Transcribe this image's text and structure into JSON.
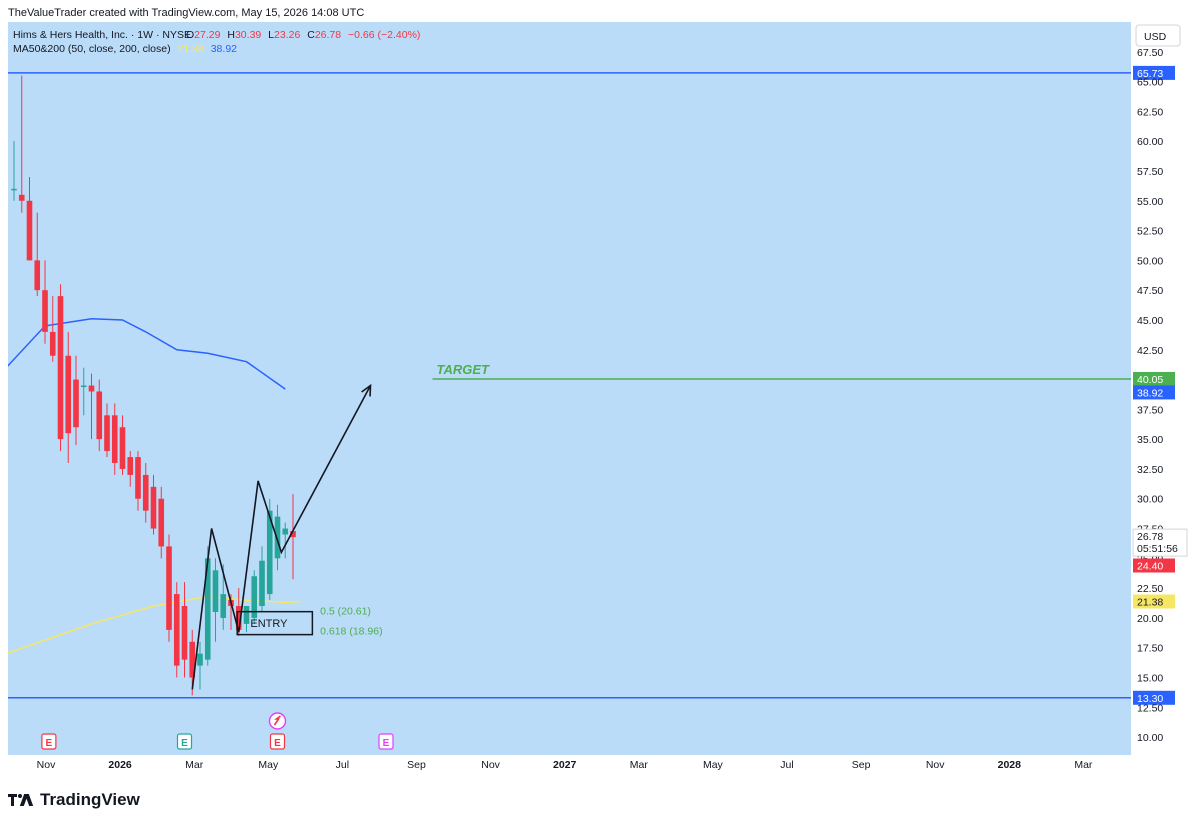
{
  "attribution": "TheValueTrader created with TradingView.com, May 15, 2026 14:08 UTC",
  "brand": "TradingView",
  "currency_button": "USD",
  "legend": {
    "symbol": "Hims & Hers Health, Inc. · 1W · NYSE",
    "o_label": "O",
    "o": "27.29",
    "h_label": "H",
    "h": "30.39",
    "l_label": "L",
    "l": "23.26",
    "c_label": "C",
    "c": "26.78",
    "change": "−0.66 (−2.40%)",
    "ma_label": "MA50&200 (50, close, 200, close)",
    "ma50": "21.38",
    "ma200": "38.92"
  },
  "colors": {
    "background": "#bbdcf8",
    "up": "#26a69a",
    "down": "#f23645",
    "ma50": "#f5e663",
    "ma200": "#2962ff",
    "hline": "#2962ff",
    "target": "#4caf50"
  },
  "chart_data": {
    "type": "candlestick",
    "y_axis": {
      "ylim": [
        8.5,
        70
      ],
      "ticks": [
        "10.00",
        "12.50",
        "15.00",
        "17.50",
        "20.00",
        "22.50",
        "25.00",
        "27.50",
        "30.00",
        "32.50",
        "35.00",
        "37.50",
        "40.00",
        "42.50",
        "45.00",
        "47.50",
        "50.00",
        "52.50",
        "55.00",
        "57.50",
        "60.00",
        "62.50",
        "65.00",
        "67.50"
      ]
    },
    "x_axis": {
      "ticks": [
        {
          "label": "Nov",
          "bold": false
        },
        {
          "label": "2026",
          "bold": true
        },
        {
          "label": "Mar",
          "bold": false
        },
        {
          "label": "May",
          "bold": false
        },
        {
          "label": "Jul",
          "bold": false
        },
        {
          "label": "Sep",
          "bold": false
        },
        {
          "label": "Nov",
          "bold": false
        },
        {
          "label": "2027",
          "bold": true
        },
        {
          "label": "Mar",
          "bold": false
        },
        {
          "label": "May",
          "bold": false
        },
        {
          "label": "Jul",
          "bold": false
        },
        {
          "label": "Sep",
          "bold": false
        },
        {
          "label": "Nov",
          "bold": false
        },
        {
          "label": "2028",
          "bold": true
        },
        {
          "label": "Mar",
          "bold": false
        }
      ]
    },
    "candles": [
      {
        "o": 56,
        "h": 60,
        "l": 55,
        "c": 56
      },
      {
        "o": 55.5,
        "h": 65.5,
        "l": 54,
        "c": 55
      },
      {
        "o": 55,
        "h": 57,
        "l": 50,
        "c": 50
      },
      {
        "o": 50,
        "h": 54,
        "l": 47,
        "c": 47.5
      },
      {
        "o": 47.5,
        "h": 50,
        "l": 43,
        "c": 44
      },
      {
        "o": 44,
        "h": 47,
        "l": 41.5,
        "c": 42
      },
      {
        "o": 47,
        "h": 48,
        "l": 34,
        "c": 35
      },
      {
        "o": 42,
        "h": 44,
        "l": 33,
        "c": 35.5
      },
      {
        "o": 40,
        "h": 42,
        "l": 34.5,
        "c": 36
      },
      {
        "o": 39.5,
        "h": 41,
        "l": 37,
        "c": 39.5
      },
      {
        "o": 39.5,
        "h": 40.5,
        "l": 35,
        "c": 39
      },
      {
        "o": 39,
        "h": 40,
        "l": 34,
        "c": 35
      },
      {
        "o": 37,
        "h": 38,
        "l": 33.5,
        "c": 34
      },
      {
        "o": 37,
        "h": 38,
        "l": 32,
        "c": 33
      },
      {
        "o": 36,
        "h": 37,
        "l": 32,
        "c": 32.5
      },
      {
        "o": 33.5,
        "h": 34,
        "l": 31,
        "c": 32
      },
      {
        "o": 33.5,
        "h": 34,
        "l": 29,
        "c": 30
      },
      {
        "o": 32,
        "h": 33,
        "l": 28,
        "c": 29
      },
      {
        "o": 31,
        "h": 32,
        "l": 27,
        "c": 27.5
      },
      {
        "o": 30,
        "h": 31,
        "l": 25,
        "c": 26
      },
      {
        "o": 26,
        "h": 27,
        "l": 18,
        "c": 19
      },
      {
        "o": 22,
        "h": 23,
        "l": 15,
        "c": 16
      },
      {
        "o": 21,
        "h": 23,
        "l": 15,
        "c": 16.5
      },
      {
        "o": 18,
        "h": 19,
        "l": 13.5,
        "c": 15
      },
      {
        "o": 16,
        "h": 18,
        "l": 14,
        "c": 17
      },
      {
        "o": 16.5,
        "h": 26,
        "l": 16,
        "c": 25
      },
      {
        "o": 20.5,
        "h": 25,
        "l": 18,
        "c": 24
      },
      {
        "o": 20,
        "h": 24.5,
        "l": 19,
        "c": 22
      },
      {
        "o": 21.5,
        "h": 22,
        "l": 19,
        "c": 21
      },
      {
        "o": 21,
        "h": 22.5,
        "l": 18.5,
        "c": 19
      },
      {
        "o": 19.5,
        "h": 21,
        "l": 18.8,
        "c": 21
      },
      {
        "o": 20,
        "h": 24,
        "l": 19.5,
        "c": 23.5
      },
      {
        "o": 21,
        "h": 26,
        "l": 20.5,
        "c": 24.8
      },
      {
        "o": 22,
        "h": 30,
        "l": 21.5,
        "c": 29
      },
      {
        "o": 25,
        "h": 29.5,
        "l": 24,
        "c": 28.5
      },
      {
        "o": 27,
        "h": 28,
        "l": 25,
        "c": 27.5
      },
      {
        "o": 27.29,
        "h": 30.39,
        "l": 23.26,
        "c": 26.78
      }
    ],
    "ma50_points": [
      [
        -1,
        17
      ],
      [
        10,
        19.5
      ],
      [
        18,
        21
      ],
      [
        25,
        21.8
      ],
      [
        30,
        21.5
      ],
      [
        35,
        21.3
      ],
      [
        37,
        21.38
      ]
    ],
    "ma200_points": [
      [
        -1,
        41
      ],
      [
        4,
        44.5
      ],
      [
        10,
        45.1
      ],
      [
        14,
        45
      ],
      [
        17,
        44
      ],
      [
        21,
        42.5
      ],
      [
        25,
        42.2
      ],
      [
        30,
        41.5
      ],
      [
        35,
        39.2
      ]
    ],
    "horizontal_lines": [
      {
        "value": 65.73,
        "label": "65.73",
        "color": "#2962ff"
      },
      {
        "value": 13.3,
        "label": "13.30",
        "color": "#2962ff"
      }
    ],
    "target": {
      "value": 40.05,
      "label": "TARGET",
      "start_index": 54
    },
    "price_labels": [
      {
        "value": 40.05,
        "label": "40.05",
        "bg": "#4caf50",
        "fg": "#ffffff"
      },
      {
        "value": 38.92,
        "label": "38.92",
        "bg": "#2962ff",
        "fg": "#ffffff"
      },
      {
        "value": 24.4,
        "label": "24.40",
        "bg": "#f23645",
        "fg": "#ffffff"
      },
      {
        "value": 21.38,
        "label": "21.38",
        "bg": "#f5e663",
        "fg": "#131722"
      }
    ],
    "last_price": {
      "value": 26.78,
      "label": "26.78",
      "countdown": "05:51:56"
    },
    "zigzag": [
      [
        23,
        14
      ],
      [
        25.5,
        27.5
      ],
      [
        29,
        18.8
      ],
      [
        31.5,
        31.5
      ],
      [
        34.5,
        25.5
      ],
      [
        46,
        39.5
      ]
    ],
    "fib": [
      {
        "label": "0.5 (20.61)",
        "value": 20.61
      },
      {
        "label": "0.618 (18.96)",
        "value": 18.96
      }
    ],
    "entry_label": "ENTRY",
    "events": [
      {
        "index": 4.5,
        "letter": "E",
        "color": "#f23645"
      },
      {
        "index": 22,
        "letter": "E",
        "color": "#26a69a"
      },
      {
        "index": 34,
        "letter": "E",
        "color": "#f23645"
      },
      {
        "index": 48,
        "letter": "E",
        "color": "#e040fb"
      }
    ]
  }
}
